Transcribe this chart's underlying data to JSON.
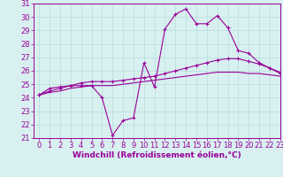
{
  "x": [
    0,
    1,
    2,
    3,
    4,
    5,
    6,
    7,
    8,
    9,
    10,
    11,
    12,
    13,
    14,
    15,
    16,
    17,
    18,
    19,
    20,
    21,
    22,
    23
  ],
  "windchill": [
    24.2,
    24.7,
    24.8,
    24.9,
    24.9,
    24.9,
    24.0,
    21.2,
    22.3,
    22.5,
    26.6,
    24.8,
    29.1,
    30.2,
    30.6,
    29.5,
    29.5,
    30.1,
    29.2,
    27.5,
    27.3,
    26.6,
    26.2,
    25.8
  ],
  "line2": [
    24.2,
    24.5,
    24.7,
    24.9,
    25.1,
    25.2,
    25.2,
    25.2,
    25.3,
    25.4,
    25.5,
    25.6,
    25.8,
    26.0,
    26.2,
    26.4,
    26.6,
    26.8,
    26.9,
    26.9,
    26.7,
    26.5,
    26.2,
    25.9
  ],
  "line3": [
    24.2,
    24.4,
    24.5,
    24.7,
    24.8,
    24.9,
    24.9,
    24.9,
    25.0,
    25.1,
    25.2,
    25.3,
    25.4,
    25.5,
    25.6,
    25.7,
    25.8,
    25.9,
    25.9,
    25.9,
    25.8,
    25.8,
    25.7,
    25.6
  ],
  "line_color": "#990099",
  "bg_color": "#d8f0f0",
  "grid_color": "#b8dede",
  "ylim": [
    21,
    31
  ],
  "xlim": [
    -0.5,
    23
  ],
  "yticks": [
    21,
    22,
    23,
    24,
    25,
    26,
    27,
    28,
    29,
    30,
    31
  ],
  "xticks": [
    0,
    1,
    2,
    3,
    4,
    5,
    6,
    7,
    8,
    9,
    10,
    11,
    12,
    13,
    14,
    15,
    16,
    17,
    18,
    19,
    20,
    21,
    22,
    23
  ],
  "xlabel": "Windchill (Refroidissement éolien,°C)",
  "xlabel_fontsize": 6.5,
  "tick_fontsize": 6.0
}
